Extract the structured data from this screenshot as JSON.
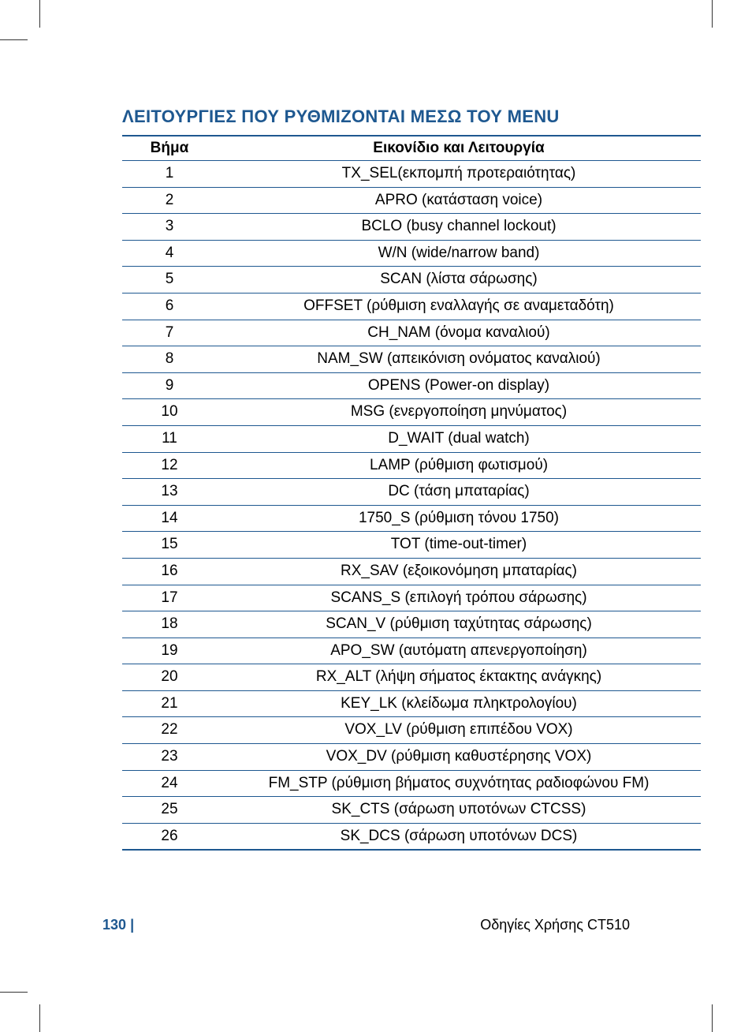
{
  "section_title": "ΛΕΙΤΟΥΡΓΙΕΣ ΠΟΥ ΡΥΘΜΙΖΟΝΤΑΙ ΜΕΣΩ ΤΟΥ ΜΕΝU",
  "table": {
    "header": {
      "step": "Βήμα",
      "function": "Εικονίδιο και Λειτουργία"
    },
    "rows": [
      {
        "step": "1",
        "function": "TX_SEL(εκπομπή προτεραιότητας)"
      },
      {
        "step": "2",
        "function": "APRO (κατάσταση voice)"
      },
      {
        "step": "3",
        "function": "BCLO (busy channel lockout)"
      },
      {
        "step": "4",
        "function": "W/N (wide/narrow band)"
      },
      {
        "step": "5",
        "function": "SCAN (λίστα σάρωσης)"
      },
      {
        "step": "6",
        "function": "OFFSET (ρύθμιση εναλλαγής σε αναμεταδότη)"
      },
      {
        "step": "7",
        "function": "CH_NAM (όνομα καναλιού)"
      },
      {
        "step": "8",
        "function": "NAM_SW (απεικόνιση ονόματος καναλιού)"
      },
      {
        "step": "9",
        "function": "OPENS (Power-on display)"
      },
      {
        "step": "10",
        "function": "MSG (ενεργοποίηση μηνύματος)"
      },
      {
        "step": "11",
        "function": "D_WAIT (dual watch)"
      },
      {
        "step": "12",
        "function": "LAMP (ρύθμιση φωτισμού)"
      },
      {
        "step": "13",
        "function": "DC (τάση μπαταρίας)"
      },
      {
        "step": "14",
        "function": "1750_S (ρύθμιση τόνου 1750)"
      },
      {
        "step": "15",
        "function": "TOT (time-out-timer)"
      },
      {
        "step": "16",
        "function": "RX_SAV (εξοικονόμηση μπαταρίας)"
      },
      {
        "step": "17",
        "function": "SCANS_S (επιλογή τρόπου σάρωσης)"
      },
      {
        "step": "18",
        "function": "SCAN_V (ρύθμιση ταχύτητας σάρωσης)"
      },
      {
        "step": "19",
        "function": "APO_SW (αυτόματη απενεργοποίηση)"
      },
      {
        "step": "20",
        "function": "RX_ALT (λήψη σήματος έκτακτης ανάγκης)"
      },
      {
        "step": "21",
        "function": "KEY_LK (κλείδωμα πληκτρολογίου)"
      },
      {
        "step": "22",
        "function": "VOX_LV (ρύθμιση επιπέδου VOX)"
      },
      {
        "step": "23",
        "function": "VOX_DV (ρύθμιση καθυστέρησης VOX)"
      },
      {
        "step": "24",
        "function": "FM_STP (ρύθμιση βήματος συχνότητας ραδιοφώνου FM)"
      },
      {
        "step": "25",
        "function": "SK_CTS (σάρωση υποτόνων CTCSS)"
      },
      {
        "step": "26",
        "function": "SK_DCS (σάρωση υποτόνων DCS)"
      }
    ]
  },
  "footer": {
    "page_number": "130",
    "separator": "|",
    "document_title": "Οδηγίες Χρήσης CT510"
  },
  "colors": {
    "accent": "#1e5890",
    "text": "#000000",
    "background": "#ffffff"
  }
}
